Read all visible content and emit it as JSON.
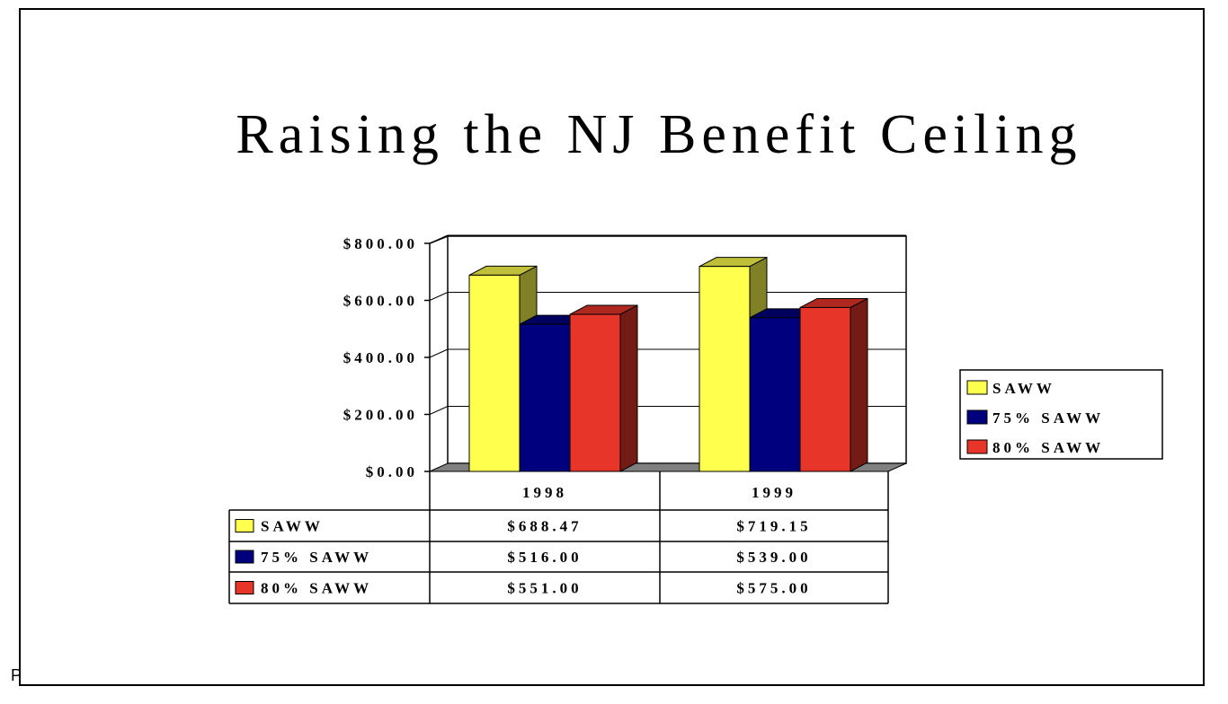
{
  "slide": {
    "title": "Raising the NJ Benefit Ceiling",
    "edge_fragment": "P"
  },
  "chart_data": {
    "type": "bar",
    "style": "3d-clustered-column-with-data-table",
    "categories": [
      "1998",
      "1999"
    ],
    "series": [
      {
        "name": "SAWW",
        "values": [
          688.47,
          719.15
        ],
        "display": [
          "$688.47",
          "$719.15"
        ],
        "color": "#FFFF4D"
      },
      {
        "name": "75% SAWW",
        "values": [
          516.0,
          539.0
        ],
        "display": [
          "$516.00",
          "$539.00"
        ],
        "color": "#00007F"
      },
      {
        "name": "80% SAWW",
        "values": [
          551.0,
          575.0
        ],
        "display": [
          "$551.00",
          "$575.00"
        ],
        "color": "#E8352A"
      }
    ],
    "y_ticks": [
      "$0.00",
      "$200.00",
      "$400.00",
      "$600.00",
      "$800.00"
    ],
    "ylim": [
      0,
      800
    ],
    "grid": true,
    "legend_position": "right",
    "data_table": true
  }
}
